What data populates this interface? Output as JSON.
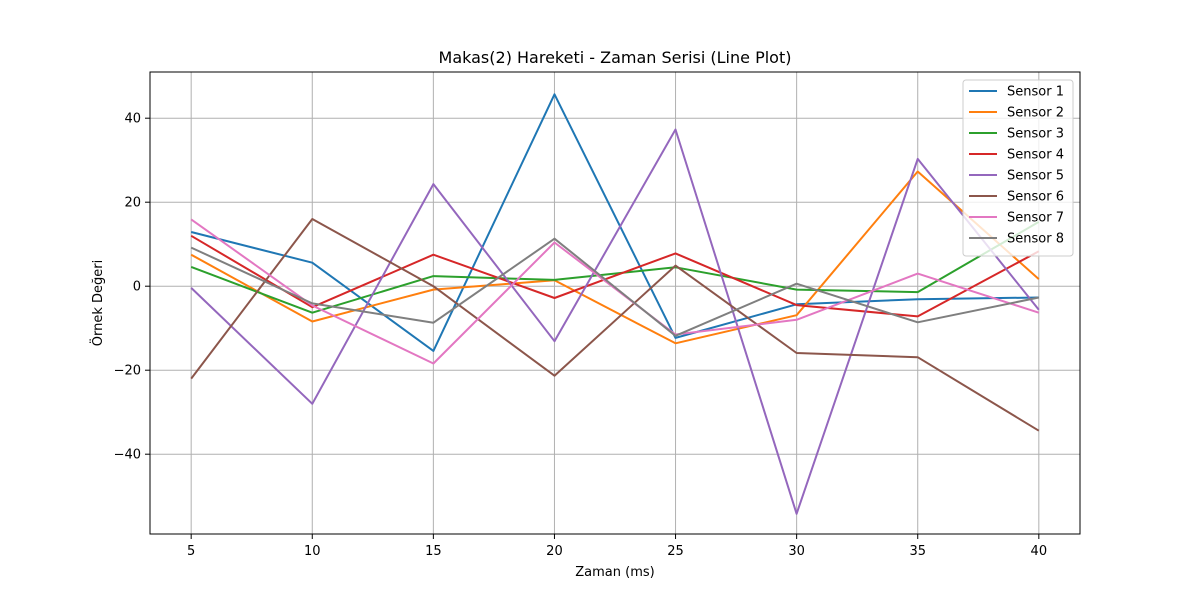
{
  "chart_data": {
    "type": "line",
    "title": "Makas(2) Hareketi - Zaman Serisi (Line Plot)",
    "xlabel": "Zaman (ms)",
    "ylabel": "Örnek Değeri",
    "x": [
      5,
      10,
      15,
      20,
      25,
      30,
      35,
      40
    ],
    "x_ticks": [
      "5",
      "10",
      "15",
      "20",
      "25",
      "30",
      "35",
      "40"
    ],
    "xlim": [
      3.3,
      41.7
    ],
    "y_ticks": [
      -40,
      -20,
      0,
      20,
      40
    ],
    "y_tick_labels": [
      "−40",
      "−20",
      "0",
      "20",
      "40"
    ],
    "ylim": [
      -59,
      51
    ],
    "grid": true,
    "legend_position": "top-right",
    "series": [
      {
        "name": "Sensor 1",
        "color": "#1f77b4",
        "values": [
          12.9,
          5.6,
          -15.4,
          45.7,
          -12.3,
          -4.3,
          -3.1,
          -2.7
        ]
      },
      {
        "name": "Sensor 2",
        "color": "#ff7f0e",
        "values": [
          7.5,
          -8.4,
          -0.8,
          1.4,
          -13.6,
          -6.9,
          27.3,
          1.7
        ]
      },
      {
        "name": "Sensor 3",
        "color": "#2ca02c",
        "values": [
          4.6,
          -6.3,
          2.4,
          1.5,
          4.5,
          -0.8,
          -1.4,
          15.3
        ]
      },
      {
        "name": "Sensor 4",
        "color": "#d62728",
        "values": [
          12.0,
          -5.0,
          7.5,
          -2.8,
          7.8,
          -4.5,
          -7.2,
          8.3
        ]
      },
      {
        "name": "Sensor 5",
        "color": "#9467bd",
        "values": [
          -0.4,
          -28.0,
          24.3,
          -13.1,
          37.3,
          -54.2,
          30.3,
          -5.6
        ]
      },
      {
        "name": "Sensor 6",
        "color": "#8c564b",
        "values": [
          -22.0,
          16.0,
          0.0,
          -21.3,
          4.9,
          -15.9,
          -16.9,
          -34.4
        ]
      },
      {
        "name": "Sensor 7",
        "color": "#e377c2",
        "values": [
          15.9,
          -4.6,
          -18.4,
          10.4,
          -11.5,
          -8.0,
          3.0,
          -6.3
        ]
      },
      {
        "name": "Sensor 8",
        "color": "#7f7f7f",
        "values": [
          9.2,
          -4.1,
          -8.7,
          11.3,
          -11.8,
          0.6,
          -8.6,
          -2.7
        ]
      }
    ]
  }
}
